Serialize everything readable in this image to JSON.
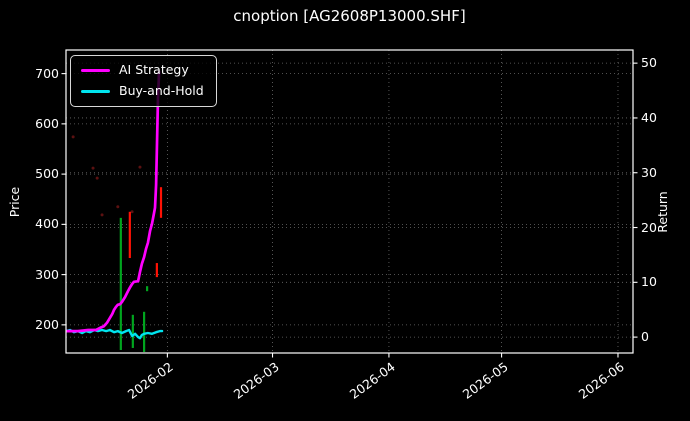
{
  "chart_data": {
    "type": "line",
    "title": "cnoption [AG2608P13000.SHF]",
    "ylabel_left": "Price",
    "ylabel_right": "Return",
    "grid": true,
    "background": "#000000",
    "x_axis": {
      "domain_days": 151,
      "start_date_note": "axis begins early Jan 2026",
      "ticks": [
        {
          "day": 27,
          "label": "2026-02"
        },
        {
          "day": 55,
          "label": "2026-03"
        },
        {
          "day": 86,
          "label": "2026-04"
        },
        {
          "day": 116,
          "label": "2026-05"
        },
        {
          "day": 147,
          "label": "2026-06"
        }
      ]
    },
    "price_axis": {
      "label": "Price",
      "range": [
        144,
        747
      ],
      "ticks": [
        200,
        300,
        400,
        500,
        600,
        700
      ]
    },
    "return_axis": {
      "label": "Return",
      "range": [
        -2.9,
        52.4
      ],
      "ticks": [
        0,
        10,
        20,
        30,
        40,
        50
      ]
    },
    "legend": {
      "position": "upper-left",
      "entries": [
        {
          "label": "AI Strategy",
          "color": "#ff00ff"
        },
        {
          "label": "Buy-and-Hold",
          "color": "#00e4ee"
        }
      ]
    },
    "series": [
      {
        "name": "Buy-and-Hold",
        "axis": "return",
        "color": "#00e4ee",
        "width": 2.4,
        "points": [
          [
            0,
            1.1
          ],
          [
            1.1,
            1.3
          ],
          [
            2.1,
            0.9
          ],
          [
            3.2,
            1.1
          ],
          [
            4.3,
            0.75
          ],
          [
            5.3,
            1.1
          ],
          [
            6.4,
            0.9
          ],
          [
            7.5,
            1.3
          ],
          [
            8.5,
            1.1
          ],
          [
            9.6,
            1.3
          ],
          [
            10.7,
            1.1
          ],
          [
            11.7,
            1.3
          ],
          [
            12.8,
            0.9
          ],
          [
            13.8,
            1.1
          ],
          [
            14.9,
            0.75
          ],
          [
            16,
            1.1
          ],
          [
            16.8,
            1.3
          ],
          [
            17.6,
            0.2
          ],
          [
            18.4,
            0.6
          ],
          [
            19.2,
            0.0
          ],
          [
            19.7,
            -0.2
          ],
          [
            20.2,
            0.4
          ],
          [
            20.8,
            0.6
          ],
          [
            21.8,
            0.75
          ],
          [
            22.9,
            0.6
          ],
          [
            24,
            0.9
          ],
          [
            25,
            1.1
          ],
          [
            25.6,
            1.1
          ]
        ]
      },
      {
        "name": "AI Strategy",
        "axis": "return",
        "color": "#ff00ff",
        "width": 2.7,
        "points": [
          [
            0,
            1.1
          ],
          [
            3.2,
            1.1
          ],
          [
            5.9,
            1.3
          ],
          [
            8,
            1.3
          ],
          [
            9.1,
            1.7
          ],
          [
            10.1,
            2.0
          ],
          [
            10.9,
            2.6
          ],
          [
            11.7,
            3.5
          ],
          [
            12.3,
            4.2
          ],
          [
            12.8,
            5.0
          ],
          [
            13.3,
            5.5
          ],
          [
            13.8,
            5.9
          ],
          [
            14.4,
            6.0
          ],
          [
            14.9,
            6.4
          ],
          [
            15.7,
            7.3
          ],
          [
            16.5,
            8.4
          ],
          [
            17,
            9.0
          ],
          [
            17.6,
            9.7
          ],
          [
            18.1,
            10.1
          ],
          [
            19.2,
            10.2
          ],
          [
            19.7,
            11.9
          ],
          [
            20.2,
            13.4
          ],
          [
            20.8,
            14.6
          ],
          [
            21.3,
            16.1
          ],
          [
            21.8,
            17.2
          ],
          [
            22.4,
            19.4
          ],
          [
            22.9,
            20.7
          ],
          [
            23.4,
            22.5
          ],
          [
            23.7,
            23.6
          ],
          [
            24,
            27.8
          ],
          [
            24.2,
            34.5
          ],
          [
            24.5,
            43.7
          ],
          [
            24.8,
            48.4
          ]
        ]
      }
    ],
    "price_marks": {
      "bars": [
        {
          "day": 14.6,
          "low": 150,
          "high": 413,
          "color": "green"
        },
        {
          "day": 17.8,
          "low": 154,
          "high": 220,
          "color": "green"
        },
        {
          "day": 20.8,
          "low": 146,
          "high": 226,
          "color": "green"
        },
        {
          "day": 21.6,
          "low": 267,
          "high": 277,
          "color": "green"
        },
        {
          "day": 17.0,
          "low": 333,
          "high": 425,
          "color": "red"
        },
        {
          "day": 24.2,
          "low": 295,
          "high": 323,
          "color": "red"
        },
        {
          "day": 25.3,
          "low": 413,
          "high": 474,
          "color": "red"
        }
      ],
      "dots": [
        {
          "day": 1.9,
          "price": 574
        },
        {
          "day": 7.2,
          "price": 512
        },
        {
          "day": 8.3,
          "price": 492
        },
        {
          "day": 9.6,
          "price": 419
        },
        {
          "day": 13.8,
          "price": 435
        },
        {
          "day": 17.6,
          "price": 425
        },
        {
          "day": 19.7,
          "price": 514
        }
      ]
    },
    "colors": {
      "green_bar": "#00a51e",
      "red_bar": "#ff1205",
      "scatter_dot": "#5c1111",
      "grid": "rgba(255,255,255,0.42)",
      "frame": "#ffffff",
      "text": "#ffffff"
    }
  }
}
